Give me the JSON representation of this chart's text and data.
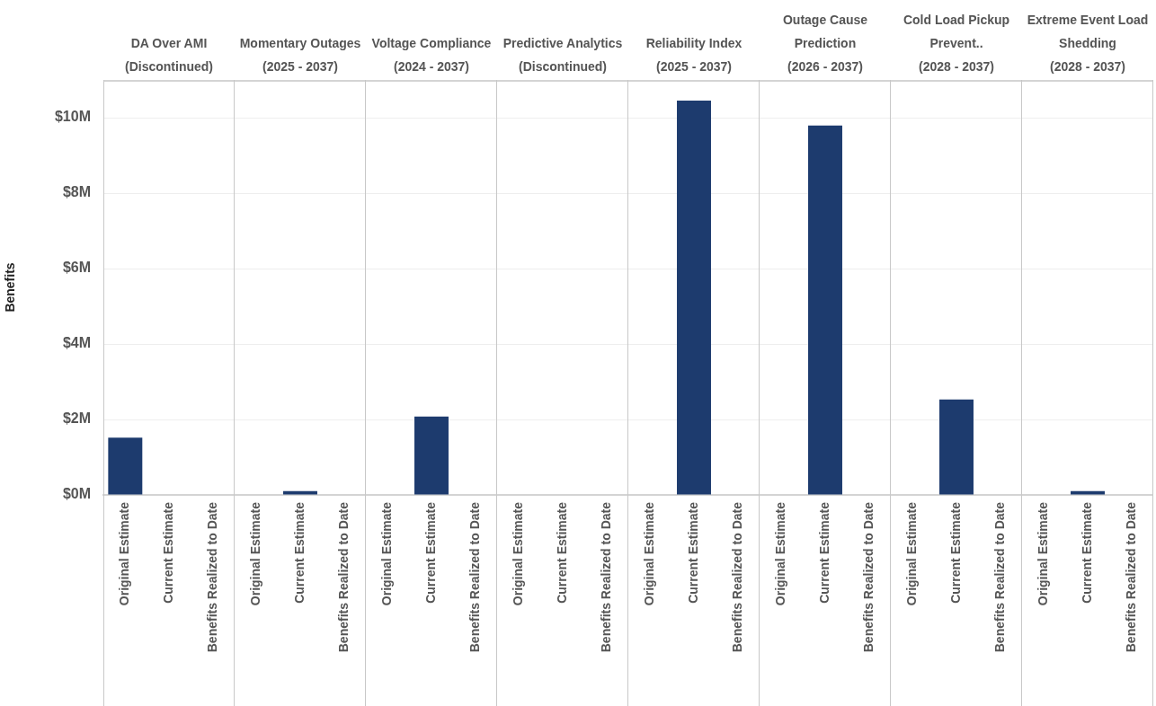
{
  "chart_data": [
    {
      "type": "bar",
      "title": "DA Over AMI (Discontinued)",
      "ylabel": "Benefits",
      "categories": [
        "Original Estimate",
        "Current Estimate",
        "Benefits Realized to Date"
      ],
      "values": [
        1.52,
        0,
        0
      ],
      "color": "#1d3b6e",
      "ylim": [
        0,
        11
      ],
      "yticks": [
        {
          "value": 0,
          "label": "$0M"
        },
        {
          "value": 2,
          "label": "$2M"
        },
        {
          "value": 4,
          "label": "$4M"
        },
        {
          "value": 6,
          "label": "$6M"
        },
        {
          "value": 8,
          "label": "$8M"
        },
        {
          "value": 10,
          "label": "$10M"
        }
      ],
      "grid": "y"
    },
    {
      "type": "bar",
      "title": "Momentary Outages (2025 - 2037)",
      "categories": [
        "Original Estimate",
        "Current Estimate",
        "Benefits Realized to Date"
      ],
      "values": [
        0,
        0.1,
        0
      ],
      "color": "#1d3b6e",
      "ylim": [
        0,
        11
      ],
      "yticks": [
        0,
        2,
        4,
        6,
        8,
        10
      ],
      "grid": "y",
      "tick_labels": "x"
    },
    {
      "type": "bar",
      "title": "Voltage Compliance (2024 - 2037)",
      "categories": [
        "Original Estimate",
        "Current Estimate",
        "Benefits Realized to Date"
      ],
      "values": [
        0,
        2.08,
        0
      ],
      "color": "#1d3b6e",
      "ylim": [
        0,
        11
      ],
      "yticks": [
        0,
        2,
        4,
        6,
        8,
        10
      ],
      "grid": "y",
      "tick_labels": "x"
    },
    {
      "type": "bar",
      "title": "Predictive Analytics (Discontinued)",
      "categories": [
        "Original Estimate",
        "Current Estimate",
        "Benefits Realized to Date"
      ],
      "values": [
        0,
        0,
        0
      ],
      "color": "#1d3b6e",
      "ylim": [
        0,
        11
      ],
      "yticks": [
        0,
        2,
        4,
        6,
        8,
        10
      ],
      "grid": "y",
      "tick_labels": "x"
    },
    {
      "type": "bar",
      "title": "Reliability Index (2025 - 2037)",
      "categories": [
        "Original Estimate",
        "Current Estimate",
        "Benefits Realized to Date"
      ],
      "values": [
        0,
        10.45,
        0
      ],
      "color": "#1d3b6e",
      "ylim": [
        0,
        11
      ],
      "yticks": [
        0,
        2,
        4,
        6,
        8,
        10
      ],
      "grid": "y",
      "tick_labels": "x"
    },
    {
      "type": "bar",
      "title": "Outage Cause Prediction (2026 - 2037)",
      "categories": [
        "Original Estimate",
        "Current Estimate",
        "Benefits Realized to Date"
      ],
      "values": [
        0,
        9.79,
        0
      ],
      "color": "#1d3b6e",
      "ylim": [
        0,
        11
      ],
      "yticks": [
        0,
        2,
        4,
        6,
        8,
        10
      ],
      "grid": "y",
      "tick_labels": "x"
    },
    {
      "type": "bar",
      "title": "Cold Load Pickup Prevent.. (2028 - 2037)",
      "categories": [
        "Original Estimate",
        "Current Estimate",
        "Benefits Realized to Date"
      ],
      "values": [
        0,
        2.53,
        0
      ],
      "color": "#1d3b6e",
      "ylim": [
        0,
        11
      ],
      "yticks": [
        0,
        2,
        4,
        6,
        8,
        10
      ],
      "grid": "y",
      "tick_labels": "x"
    },
    {
      "type": "bar",
      "title": "Extreme Event Load Shedding (2028 - 2037)",
      "categories": [
        "Original Estimate",
        "Current Estimate",
        "Benefits Realized to Date"
      ],
      "values": [
        0,
        0.1,
        0
      ],
      "color": "#1d3b6e",
      "ylim": [
        0,
        11
      ],
      "yticks": [
        0,
        2,
        4,
        6,
        8,
        10
      ],
      "grid": "y",
      "tick_labels": "x"
    }
  ]
}
